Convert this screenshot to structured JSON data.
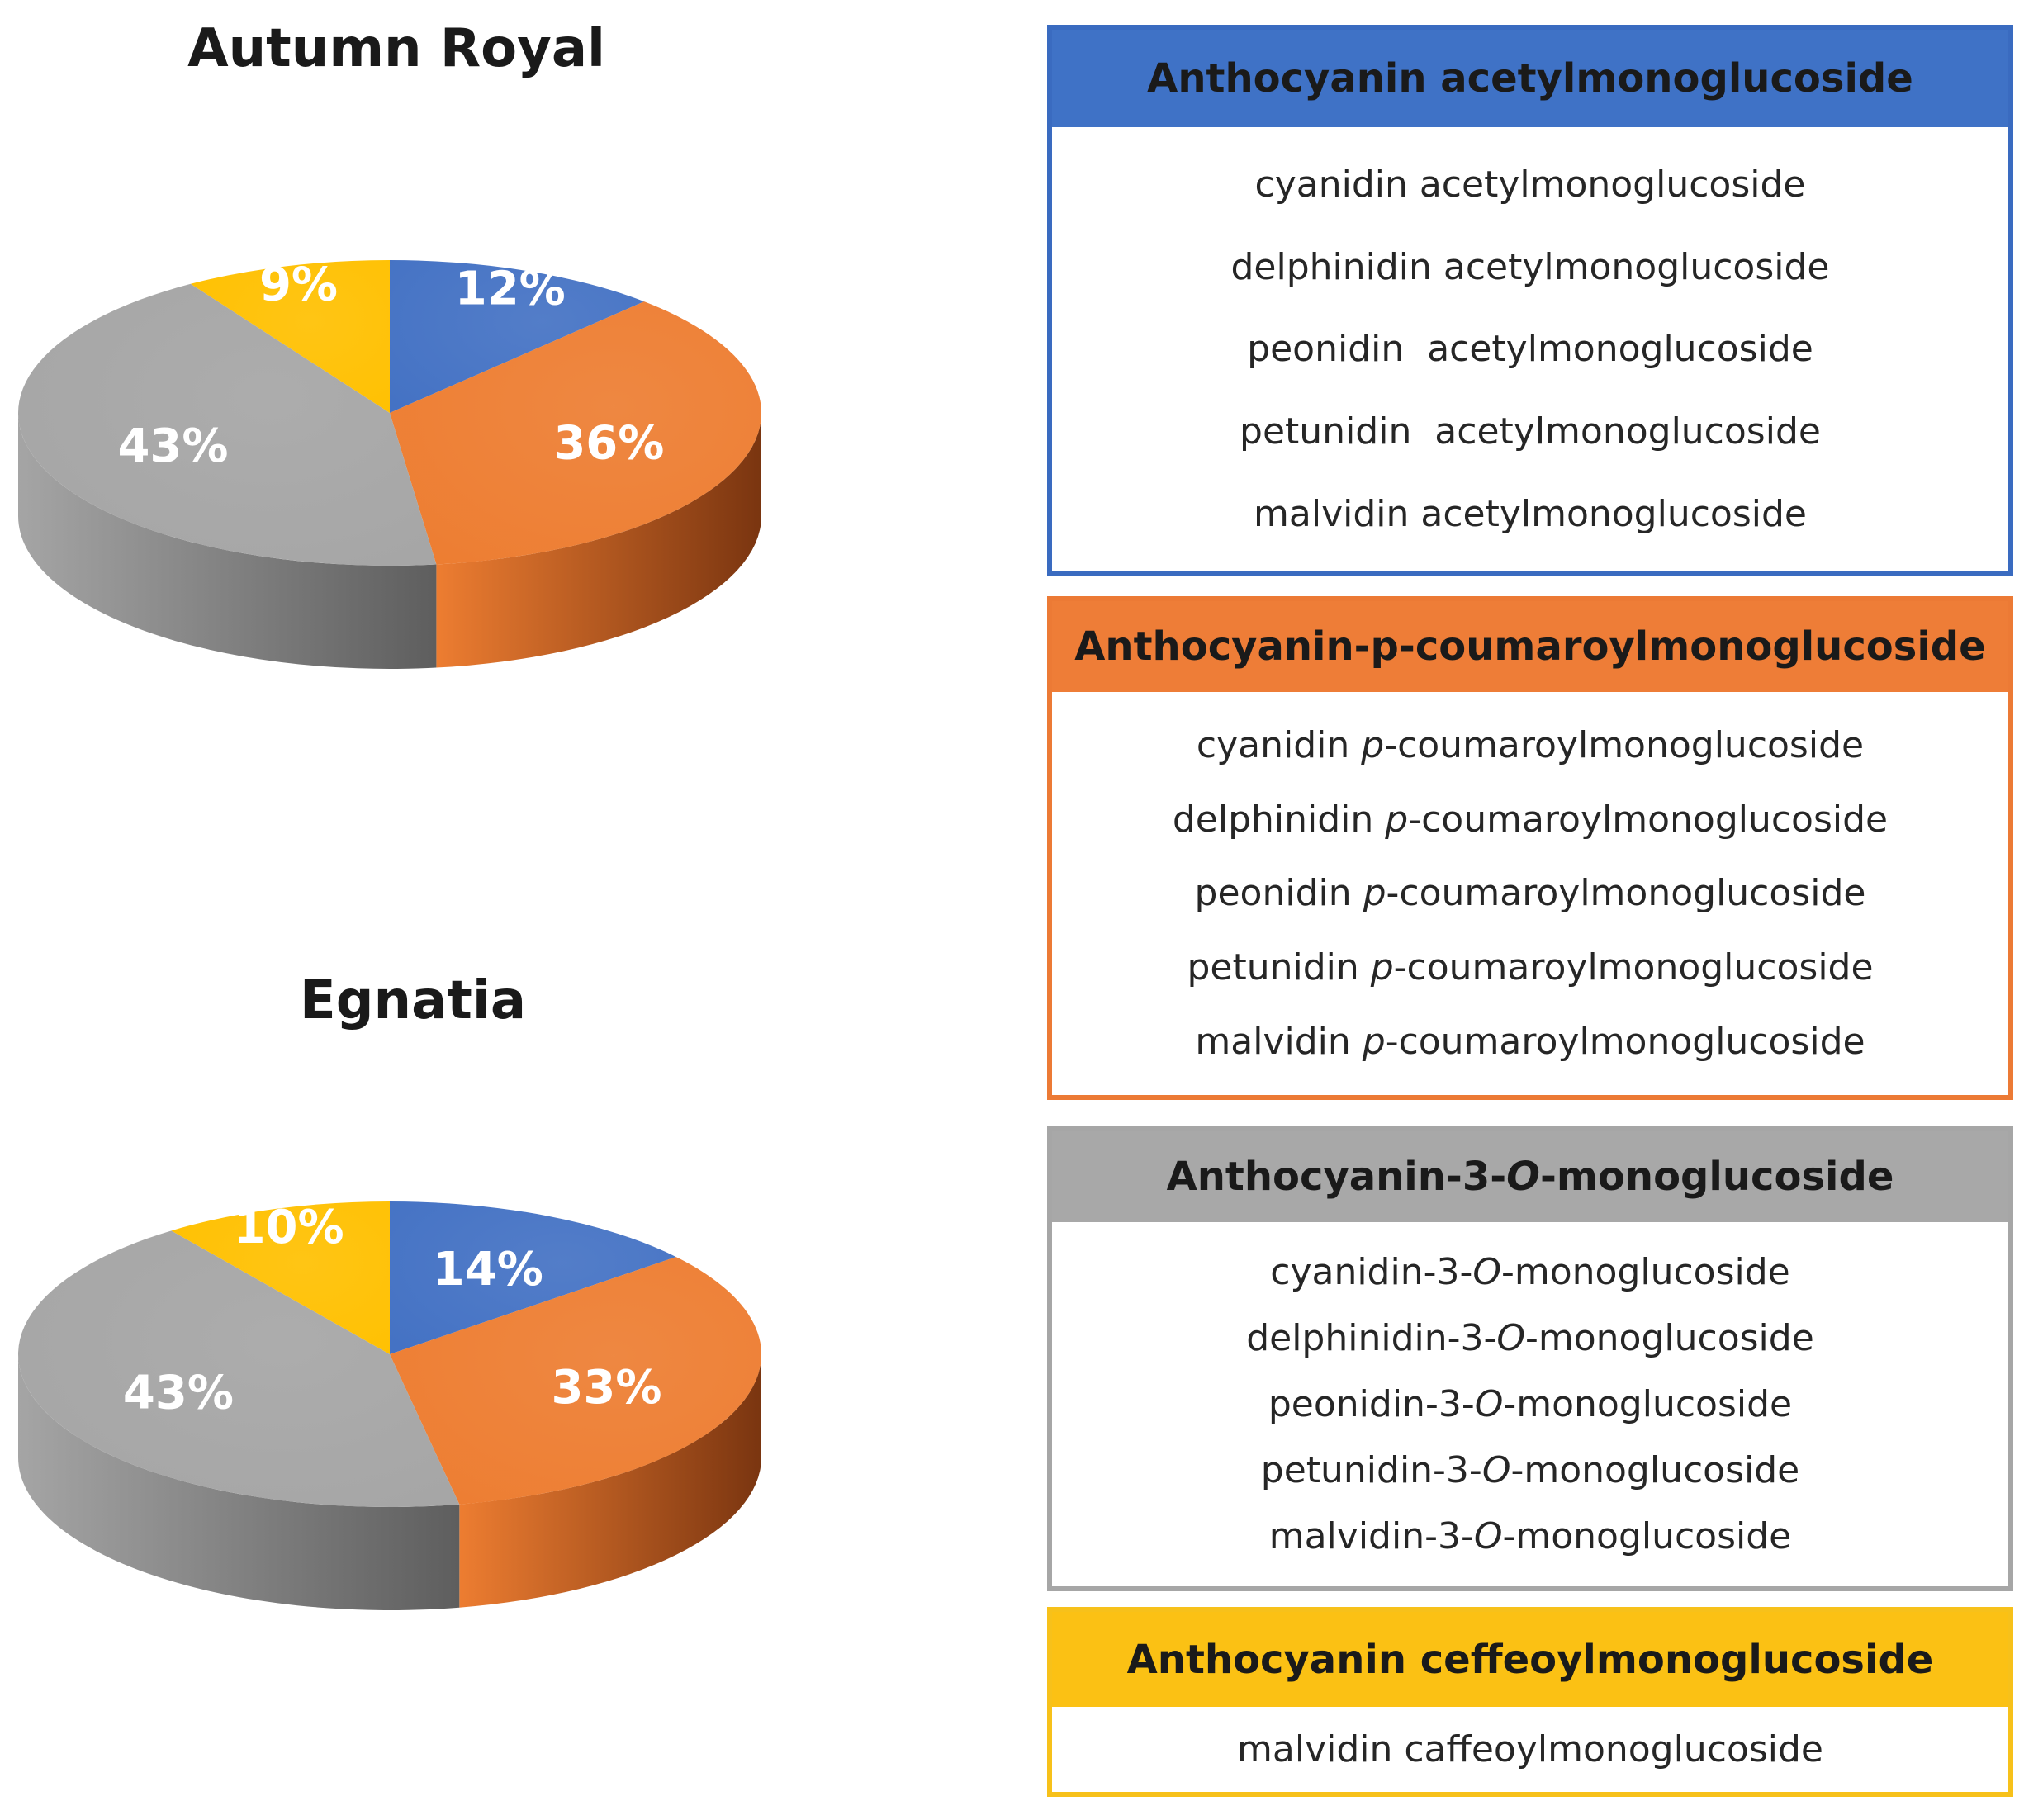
{
  "colors": {
    "acetyl": "#4472c4",
    "coumaroyl": "#ed7d31",
    "monoglucoside": "#a5a5a5",
    "caffeoyl": "#ffc000"
  },
  "chart_data": [
    {
      "type": "pie",
      "title": "Autumn Royal",
      "categories": [
        "Anthocyanin acetylmonoglucoside",
        "Anthocyanin-p-coumaroylmonoglucoside",
        "Anthocyanin-3-O-monoglucoside",
        "Anthocyanin ceffeoylmonoglucoside"
      ],
      "values": [
        12,
        36,
        43,
        9
      ],
      "labels": [
        "12%",
        "36%",
        "43%",
        "9%"
      ]
    },
    {
      "type": "pie",
      "title": "Egnatia",
      "categories": [
        "Anthocyanin acetylmonoglucoside",
        "Anthocyanin-p-coumaroylmonoglucoside",
        "Anthocyanin-3-O-monoglucoside",
        "Anthocyanin ceffeoylmonoglucoside"
      ],
      "values": [
        14,
        33,
        43,
        10
      ],
      "labels": [
        "14%",
        "33%",
        "43%",
        "10%"
      ]
    }
  ],
  "legend": [
    {
      "key": "acetyl",
      "header": "Anthocyanin acetylmonoglucoside",
      "items": [
        {
          "pre": "cyanidin acetylmonoglucoside",
          "it": "",
          "post": ""
        },
        {
          "pre": "delphinidin acetylmonoglucoside",
          "it": "",
          "post": ""
        },
        {
          "pre": "peonidin  acetylmonoglucoside",
          "it": "",
          "post": ""
        },
        {
          "pre": "petunidin  acetylmonoglucoside",
          "it": "",
          "post": ""
        },
        {
          "pre": "malvidin acetylmonoglucoside",
          "it": "",
          "post": ""
        }
      ]
    },
    {
      "key": "coumaroyl",
      "header": "Anthocyanin-p-coumaroylmonoglucoside",
      "items": [
        {
          "pre": "cyanidin ",
          "it": "p",
          "post": "-coumaroylmonoglucoside"
        },
        {
          "pre": "delphinidin ",
          "it": "p",
          "post": "-coumaroylmonoglucoside"
        },
        {
          "pre": "peonidin ",
          "it": "p",
          "post": "-coumaroylmonoglucoside"
        },
        {
          "pre": "petunidin ",
          "it": "p",
          "post": "-coumaroylmonoglucoside"
        },
        {
          "pre": "malvidin ",
          "it": "p",
          "post": "-coumaroylmonoglucoside"
        }
      ]
    },
    {
      "key": "monoglucoside",
      "header_pre": "Anthocyanin-3-",
      "header_it": "O",
      "header_post": "-monoglucoside",
      "items": [
        {
          "pre": "cyanidin-3-",
          "it": "O",
          "post": "-monoglucoside"
        },
        {
          "pre": "delphinidin-3-",
          "it": "O",
          "post": "-monoglucoside"
        },
        {
          "pre": "peonidin-3-",
          "it": "O",
          "post": "-monoglucoside"
        },
        {
          "pre": "petunidin-3-",
          "it": "O",
          "post": "-monoglucoside"
        },
        {
          "pre": "malvidin-3-",
          "it": "O",
          "post": "-monoglucoside"
        }
      ]
    },
    {
      "key": "caffeoyl",
      "header": "Anthocyanin ceffeoylmonoglucoside",
      "items": [
        {
          "pre": "malvidin caffeoylmonoglucoside",
          "it": "",
          "post": ""
        }
      ]
    }
  ]
}
